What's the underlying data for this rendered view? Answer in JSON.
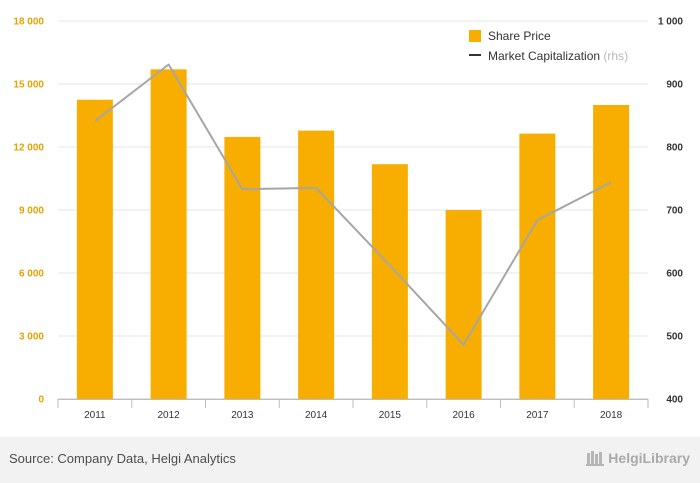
{
  "source_text": "Source: Company Data, Helgi Analytics",
  "brand_text": "HelgiLibrary",
  "colors": {
    "bar": "#f7ae00",
    "line": "#a6a6a6",
    "left_axis": "#e8a200"
  },
  "chart_data": {
    "type": "bar",
    "categories": [
      "2011",
      "2012",
      "2013",
      "2014",
      "2015",
      "2016",
      "2017",
      "2018"
    ],
    "series": [
      {
        "name": "Share Price",
        "type": "bar",
        "axis": "left",
        "values": [
          14250,
          15700,
          12480,
          12780,
          11180,
          9000,
          12640,
          14000
        ]
      },
      {
        "name": "Market Capitalization",
        "type": "line",
        "axis": "right",
        "values": [
          841,
          931,
          733,
          735,
          612,
          486,
          684,
          744
        ]
      }
    ],
    "legend": {
      "items": [
        "Share Price",
        "Market Capitalization"
      ],
      "suffix": "(rhs)",
      "position": "top-right"
    },
    "y_left": {
      "min": 0,
      "max": 18000,
      "ticks": [
        "0",
        "3 000",
        "6 000",
        "9 000",
        "12 000",
        "15 000",
        "18 000"
      ]
    },
    "y_right": {
      "min": 400,
      "max": 1000,
      "ticks": [
        "400",
        "500",
        "600",
        "700",
        "800",
        "900",
        "1 000"
      ]
    },
    "grid": true
  }
}
